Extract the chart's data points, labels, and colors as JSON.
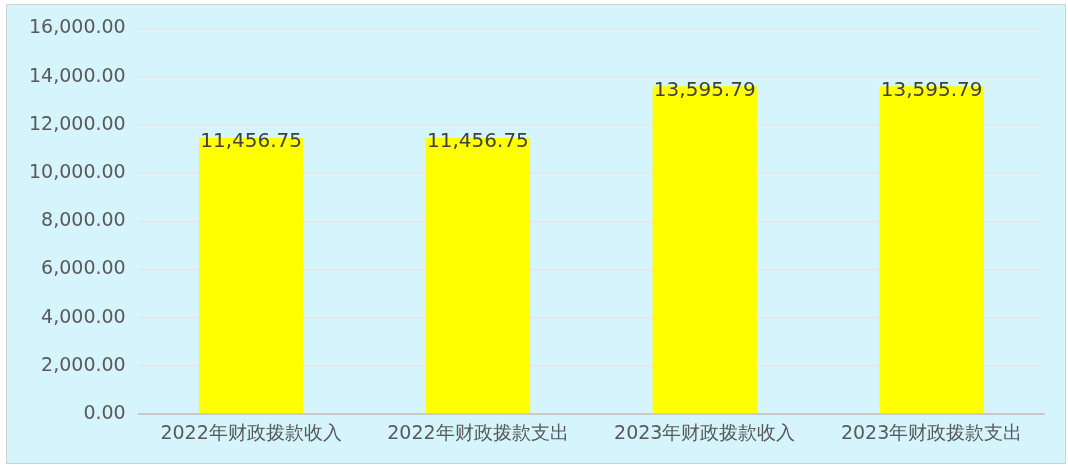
{
  "chart_data": {
    "type": "bar",
    "categories": [
      "2022年财政拨款收入",
      "2022年财政拨款支出",
      "2023年财政拨款收入",
      "2023年财政拨款支出"
    ],
    "values": [
      11456.75,
      11456.75,
      13595.79,
      13595.79
    ],
    "value_labels": [
      "11,456.75",
      "11,456.75",
      "13,595.79",
      "13,595.79"
    ],
    "color": "#ffff00",
    "ylim": [
      0,
      16000
    ],
    "yticks": [
      {
        "value": 0,
        "label": "0.00"
      },
      {
        "value": 2000,
        "label": "2,000.00"
      },
      {
        "value": 4000,
        "label": "4,000.00"
      },
      {
        "value": 6000,
        "label": "6,000.00"
      },
      {
        "value": 8000,
        "label": "8,000.00"
      },
      {
        "value": 10000,
        "label": "10,000.00"
      },
      {
        "value": 12000,
        "label": "12,000.00"
      },
      {
        "value": 14000,
        "label": "14,000.00"
      },
      {
        "value": 16000,
        "label": "16,000.00"
      }
    ],
    "grid": "y",
    "legend": false
  }
}
